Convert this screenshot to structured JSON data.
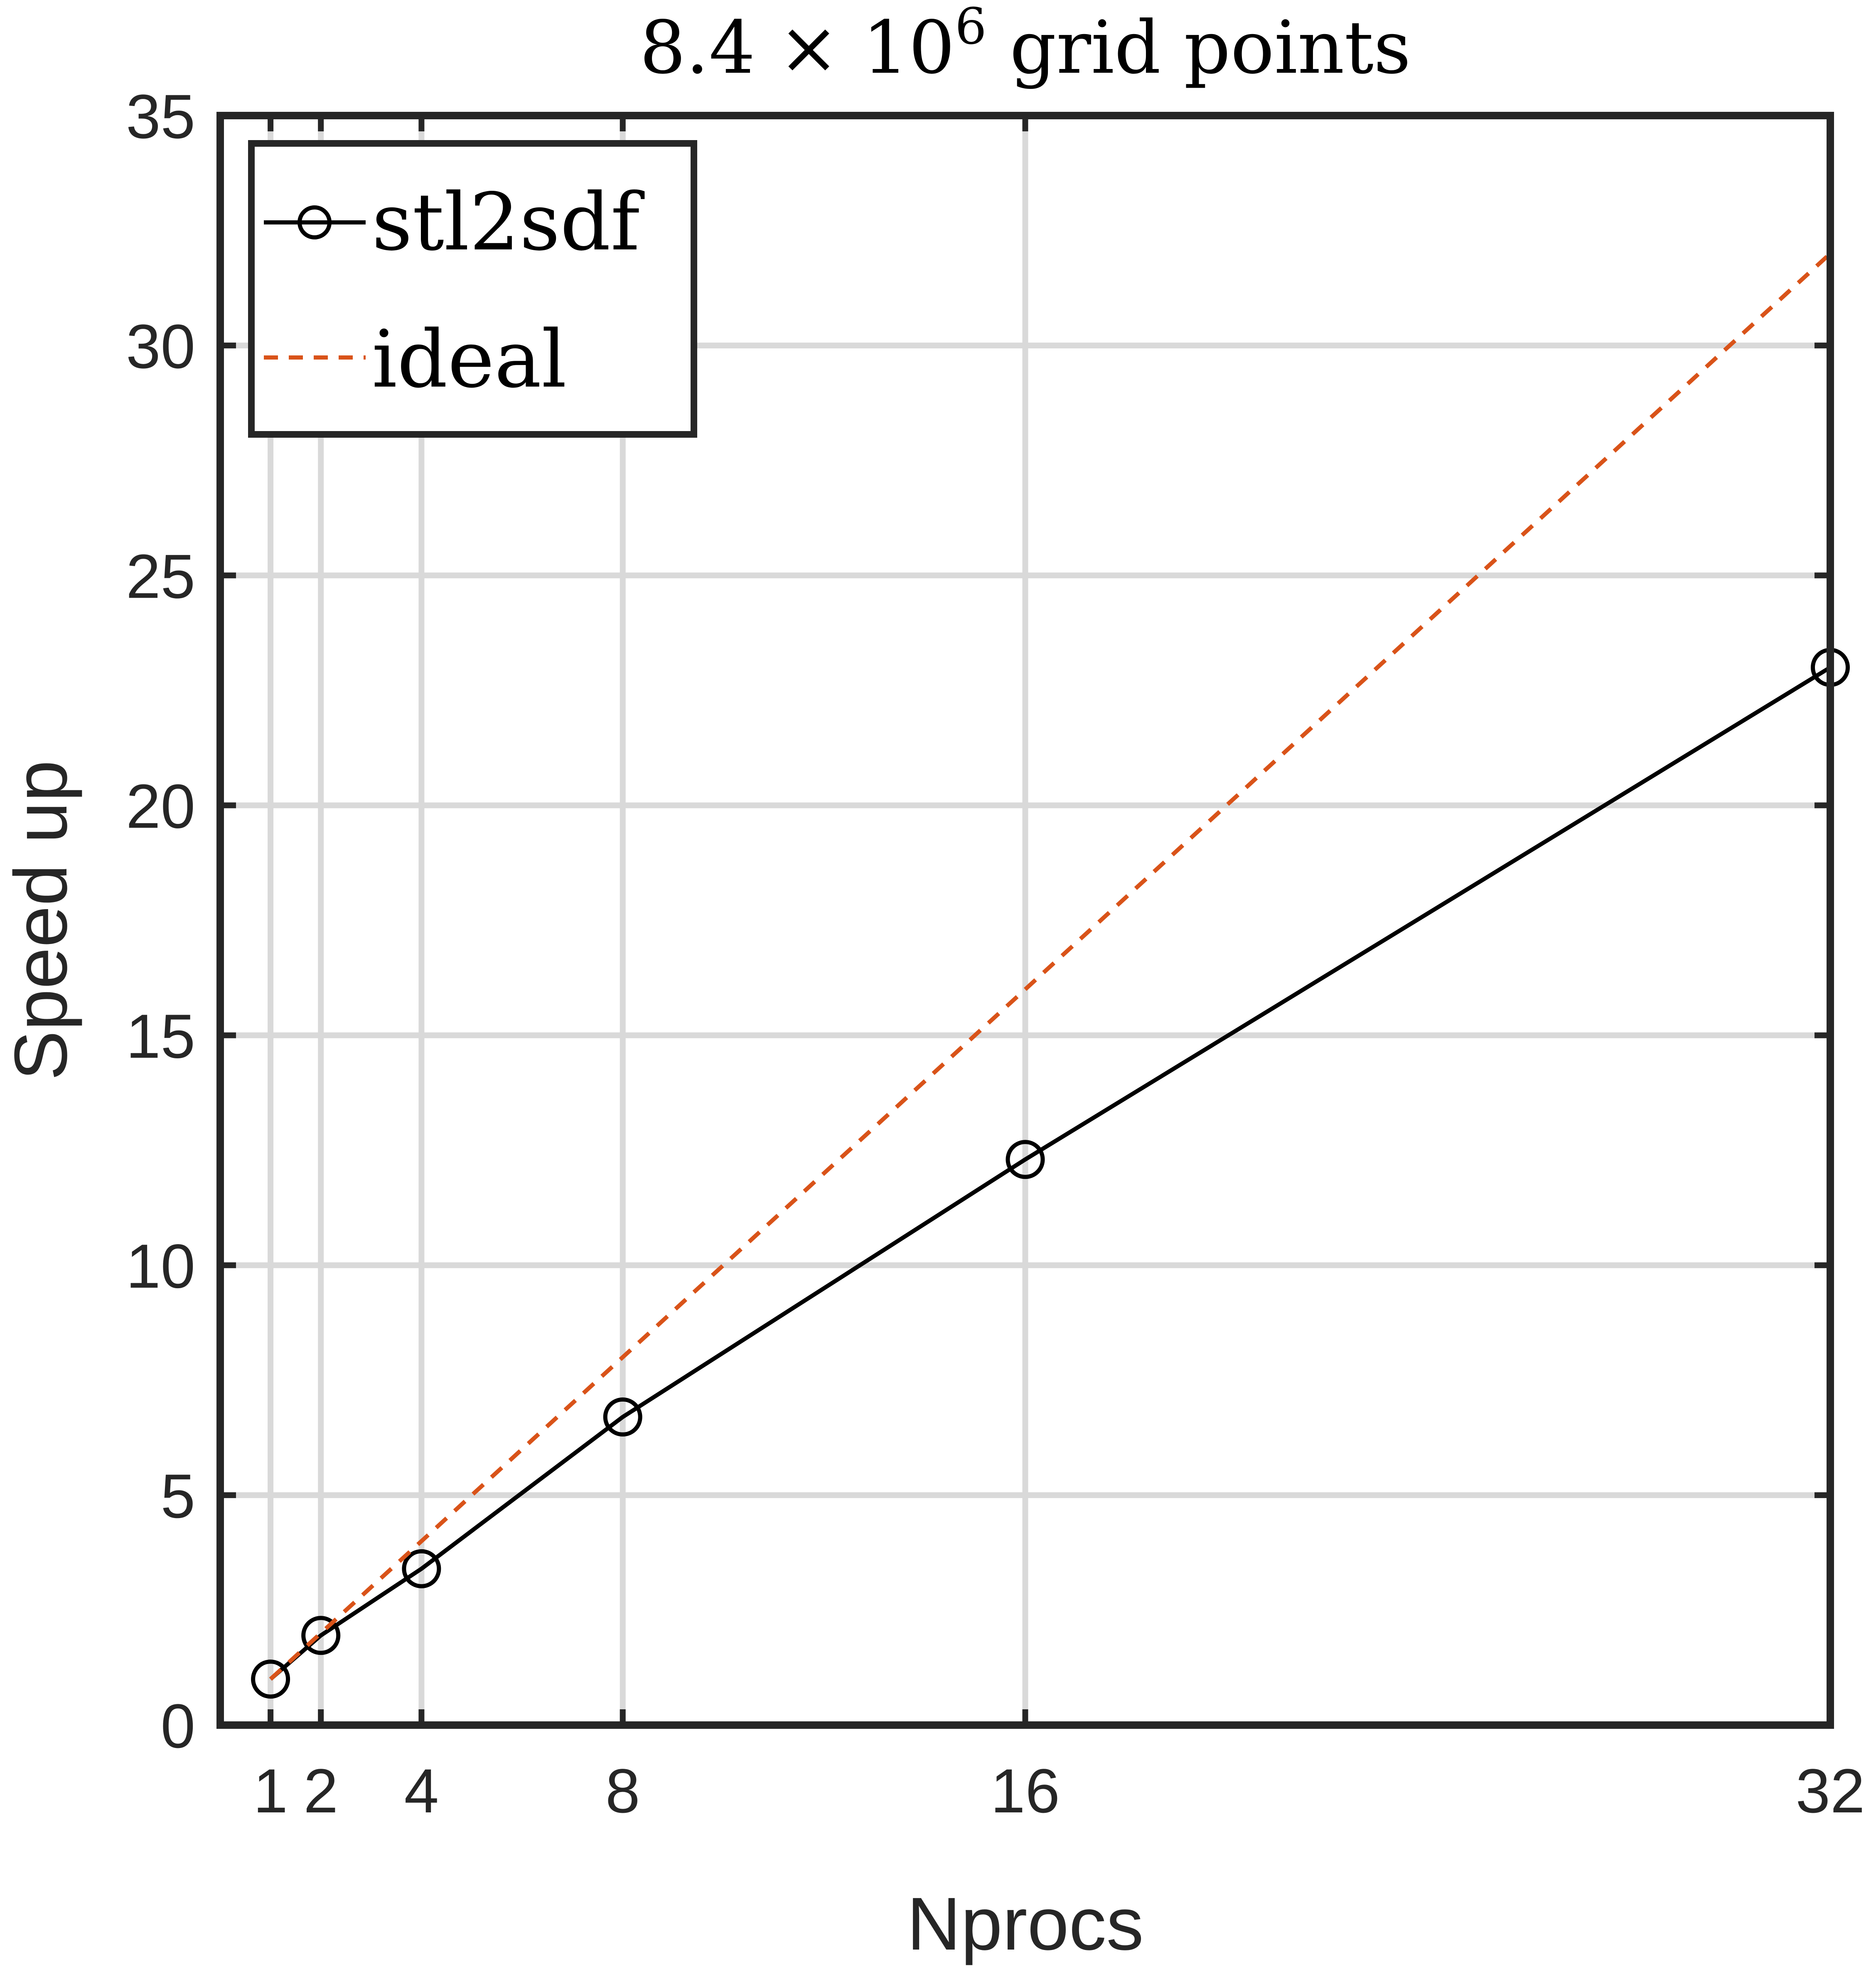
{
  "chart_data": {
    "type": "line",
    "title": "8.4 × 10",
    "title_exponent": "6",
    "title_suffix": " grid points",
    "xlabel": "Nprocs",
    "ylabel": "Speed up",
    "x_ticks": [
      1,
      2,
      4,
      8,
      16,
      32
    ],
    "x_tick_labels": [
      "1",
      "2",
      "4",
      "8",
      "16",
      "32"
    ],
    "y_ticks": [
      0,
      5,
      10,
      15,
      20,
      25,
      30,
      35
    ],
    "y_tick_labels": [
      "0",
      "5",
      "10",
      "15",
      "20",
      "25",
      "30",
      "35"
    ],
    "xlim": [
      0,
      32
    ],
    "ylim": [
      0,
      35
    ],
    "grid": true,
    "legend_position": "top-left",
    "series": [
      {
        "name": "stl2sdf",
        "x": [
          1,
          2,
          4,
          8,
          16,
          32
        ],
        "y": [
          1.0,
          1.95,
          3.4,
          6.7,
          12.3,
          23.0
        ],
        "color": "#000000",
        "line_style": "solid",
        "marker": "circle"
      },
      {
        "name": "ideal",
        "x": [
          1,
          2,
          4,
          8,
          16,
          32
        ],
        "y": [
          1,
          2,
          4,
          8,
          16,
          32
        ],
        "color": "#d95319",
        "line_style": "dashed",
        "marker": "none"
      }
    ]
  }
}
